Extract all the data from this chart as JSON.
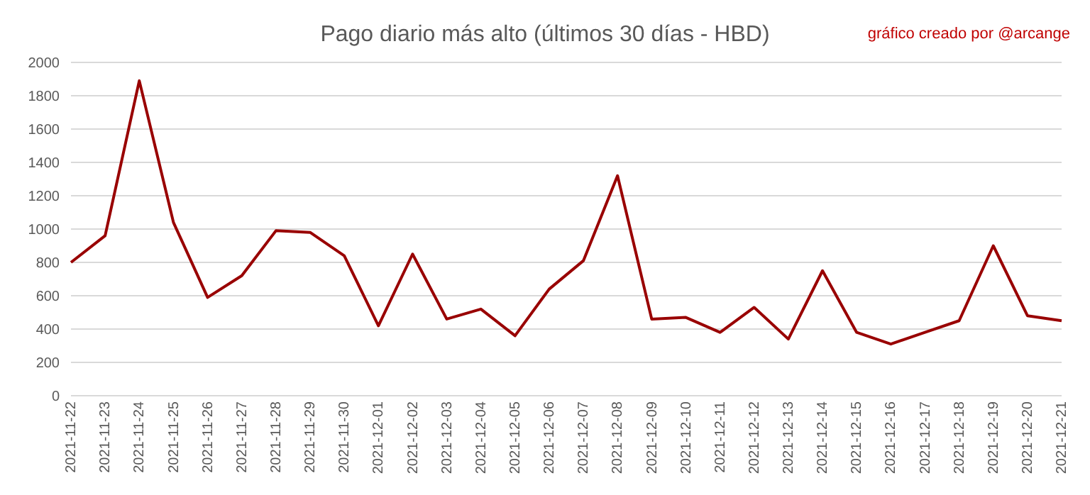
{
  "chart_data": {
    "type": "line",
    "title": "Pago diario más alto (últimos 30 días - HBD)",
    "annotations": [
      "gráfico creado por @arcange"
    ],
    "categories": [
      "2021-11-22",
      "2021-11-23",
      "2021-11-24",
      "2021-11-25",
      "2021-11-26",
      "2021-11-27",
      "2021-11-28",
      "2021-11-29",
      "2021-11-30",
      "2021-12-01",
      "2021-12-02",
      "2021-12-03",
      "2021-12-04",
      "2021-12-05",
      "2021-12-06",
      "2021-12-07",
      "2021-12-08",
      "2021-12-09",
      "2021-12-10",
      "2021-12-11",
      "2021-12-12",
      "2021-12-13",
      "2021-12-14",
      "2021-12-15",
      "2021-12-16",
      "2021-12-17",
      "2021-12-18",
      "2021-12-19",
      "2021-12-20",
      "2021-12-21"
    ],
    "series": [
      {
        "color": "#990000",
        "values": [
          800,
          960,
          1890,
          1040,
          590,
          720,
          990,
          980,
          840,
          420,
          850,
          460,
          520,
          360,
          640,
          810,
          1320,
          460,
          470,
          380,
          530,
          340,
          750,
          380,
          310,
          380,
          450,
          900,
          480,
          450
        ]
      }
    ],
    "ylim": [
      0,
      2000
    ],
    "yticks": [
      0,
      200,
      400,
      600,
      800,
      1000,
      1200,
      1400,
      1600,
      1800,
      2000
    ],
    "grid": "y",
    "legend": false,
    "marker": "none",
    "line_style": "solid"
  }
}
